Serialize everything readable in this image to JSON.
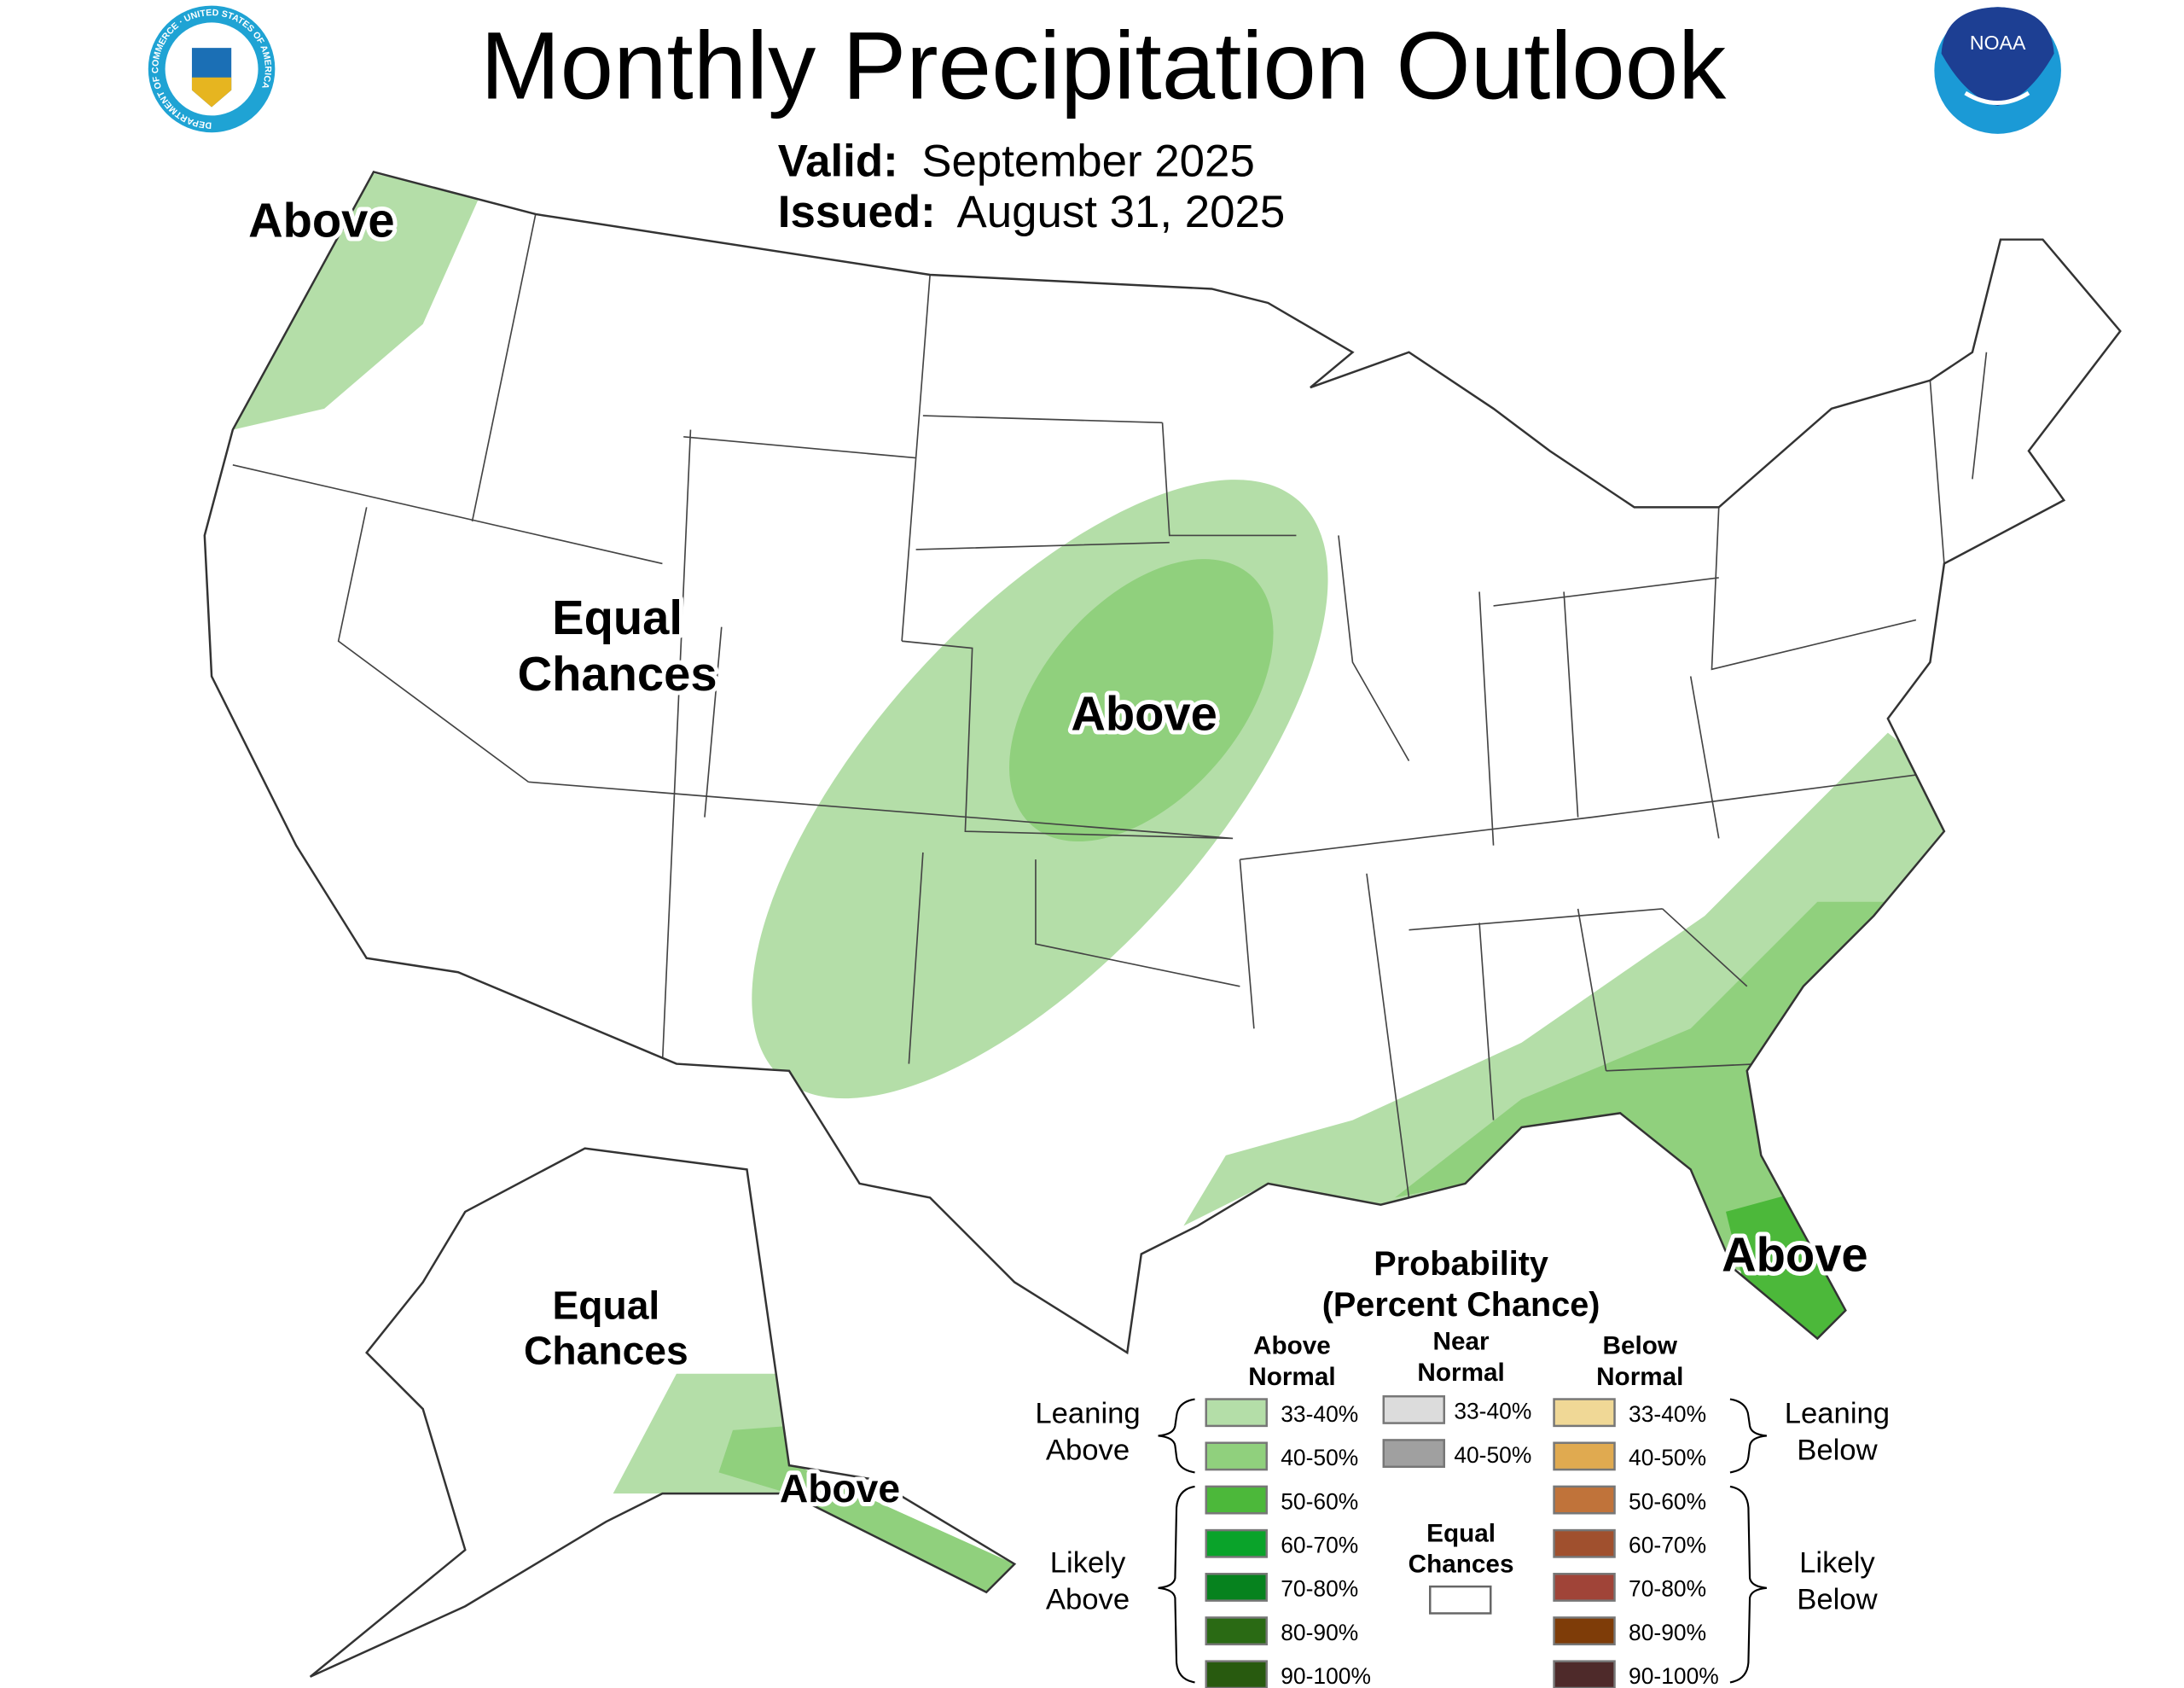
{
  "header": {
    "title": "Monthly Precipitation Outlook",
    "valid_label": "Valid:",
    "valid_value": "September 2025",
    "issued_label": "Issued:",
    "issued_value": "August 31, 2025",
    "left_logo": "Department of Commerce seal",
    "left_logo_text": "DEPARTMENT OF COMMERCE · UNITED STATES OF AMERICA",
    "right_logo": "NOAA logo",
    "right_logo_text": "NOAA"
  },
  "map": {
    "regions": [
      {
        "label": "Above",
        "category": "above",
        "level": "33-40%"
      },
      {
        "label": "Equal Chances",
        "line1": "Equal",
        "line2": "Chances",
        "category": "equal"
      },
      {
        "label": "Above",
        "category": "above",
        "level": "40-50%"
      },
      {
        "label": "Above",
        "category": "above",
        "level": "50-60%"
      },
      {
        "label": "Equal Chances",
        "line1": "Equal",
        "line2": "Chances",
        "category": "equal"
      },
      {
        "label": "Above",
        "category": "above",
        "level": "40-50%"
      }
    ]
  },
  "legend": {
    "title1": "Probability",
    "title2": "(Percent Chance)",
    "columns": {
      "above": {
        "l1": "Above",
        "l2": "Normal"
      },
      "near": {
        "l1": "Near",
        "l2": "Normal"
      },
      "below": {
        "l1": "Below",
        "l2": "Normal"
      }
    },
    "above": [
      {
        "label": "33-40%",
        "color": "#b4dea8"
      },
      {
        "label": "40-50%",
        "color": "#90d07d"
      },
      {
        "label": "50-60%",
        "color": "#4cb83a"
      },
      {
        "label": "60-70%",
        "color": "#0aa32a"
      },
      {
        "label": "70-80%",
        "color": "#06821e"
      },
      {
        "label": "80-90%",
        "color": "#2a6a14"
      },
      {
        "label": "90-100%",
        "color": "#285a0f"
      }
    ],
    "near": [
      {
        "label": "33-40%",
        "color": "#dcdcdc"
      },
      {
        "label": "40-50%",
        "color": "#a0a0a0"
      }
    ],
    "below": [
      {
        "label": "33-40%",
        "color": "#f0d896"
      },
      {
        "label": "40-50%",
        "color": "#e0aa50"
      },
      {
        "label": "50-60%",
        "color": "#c0733a"
      },
      {
        "label": "60-70%",
        "color": "#a0502e"
      },
      {
        "label": "70-80%",
        "color": "#a04438"
      },
      {
        "label": "80-90%",
        "color": "#7e3c08"
      },
      {
        "label": "90-100%",
        "color": "#4e2a2a"
      }
    ],
    "equal": {
      "l1": "Equal",
      "l2": "Chances",
      "color": "#ffffff"
    },
    "leaning_above": {
      "l1": "Leaning",
      "l2": "Above"
    },
    "likely_above": {
      "l1": "Likely",
      "l2": "Above"
    },
    "leaning_below": {
      "l1": "Leaning",
      "l2": "Below"
    },
    "likely_below": {
      "l1": "Likely",
      "l2": "Below"
    }
  }
}
